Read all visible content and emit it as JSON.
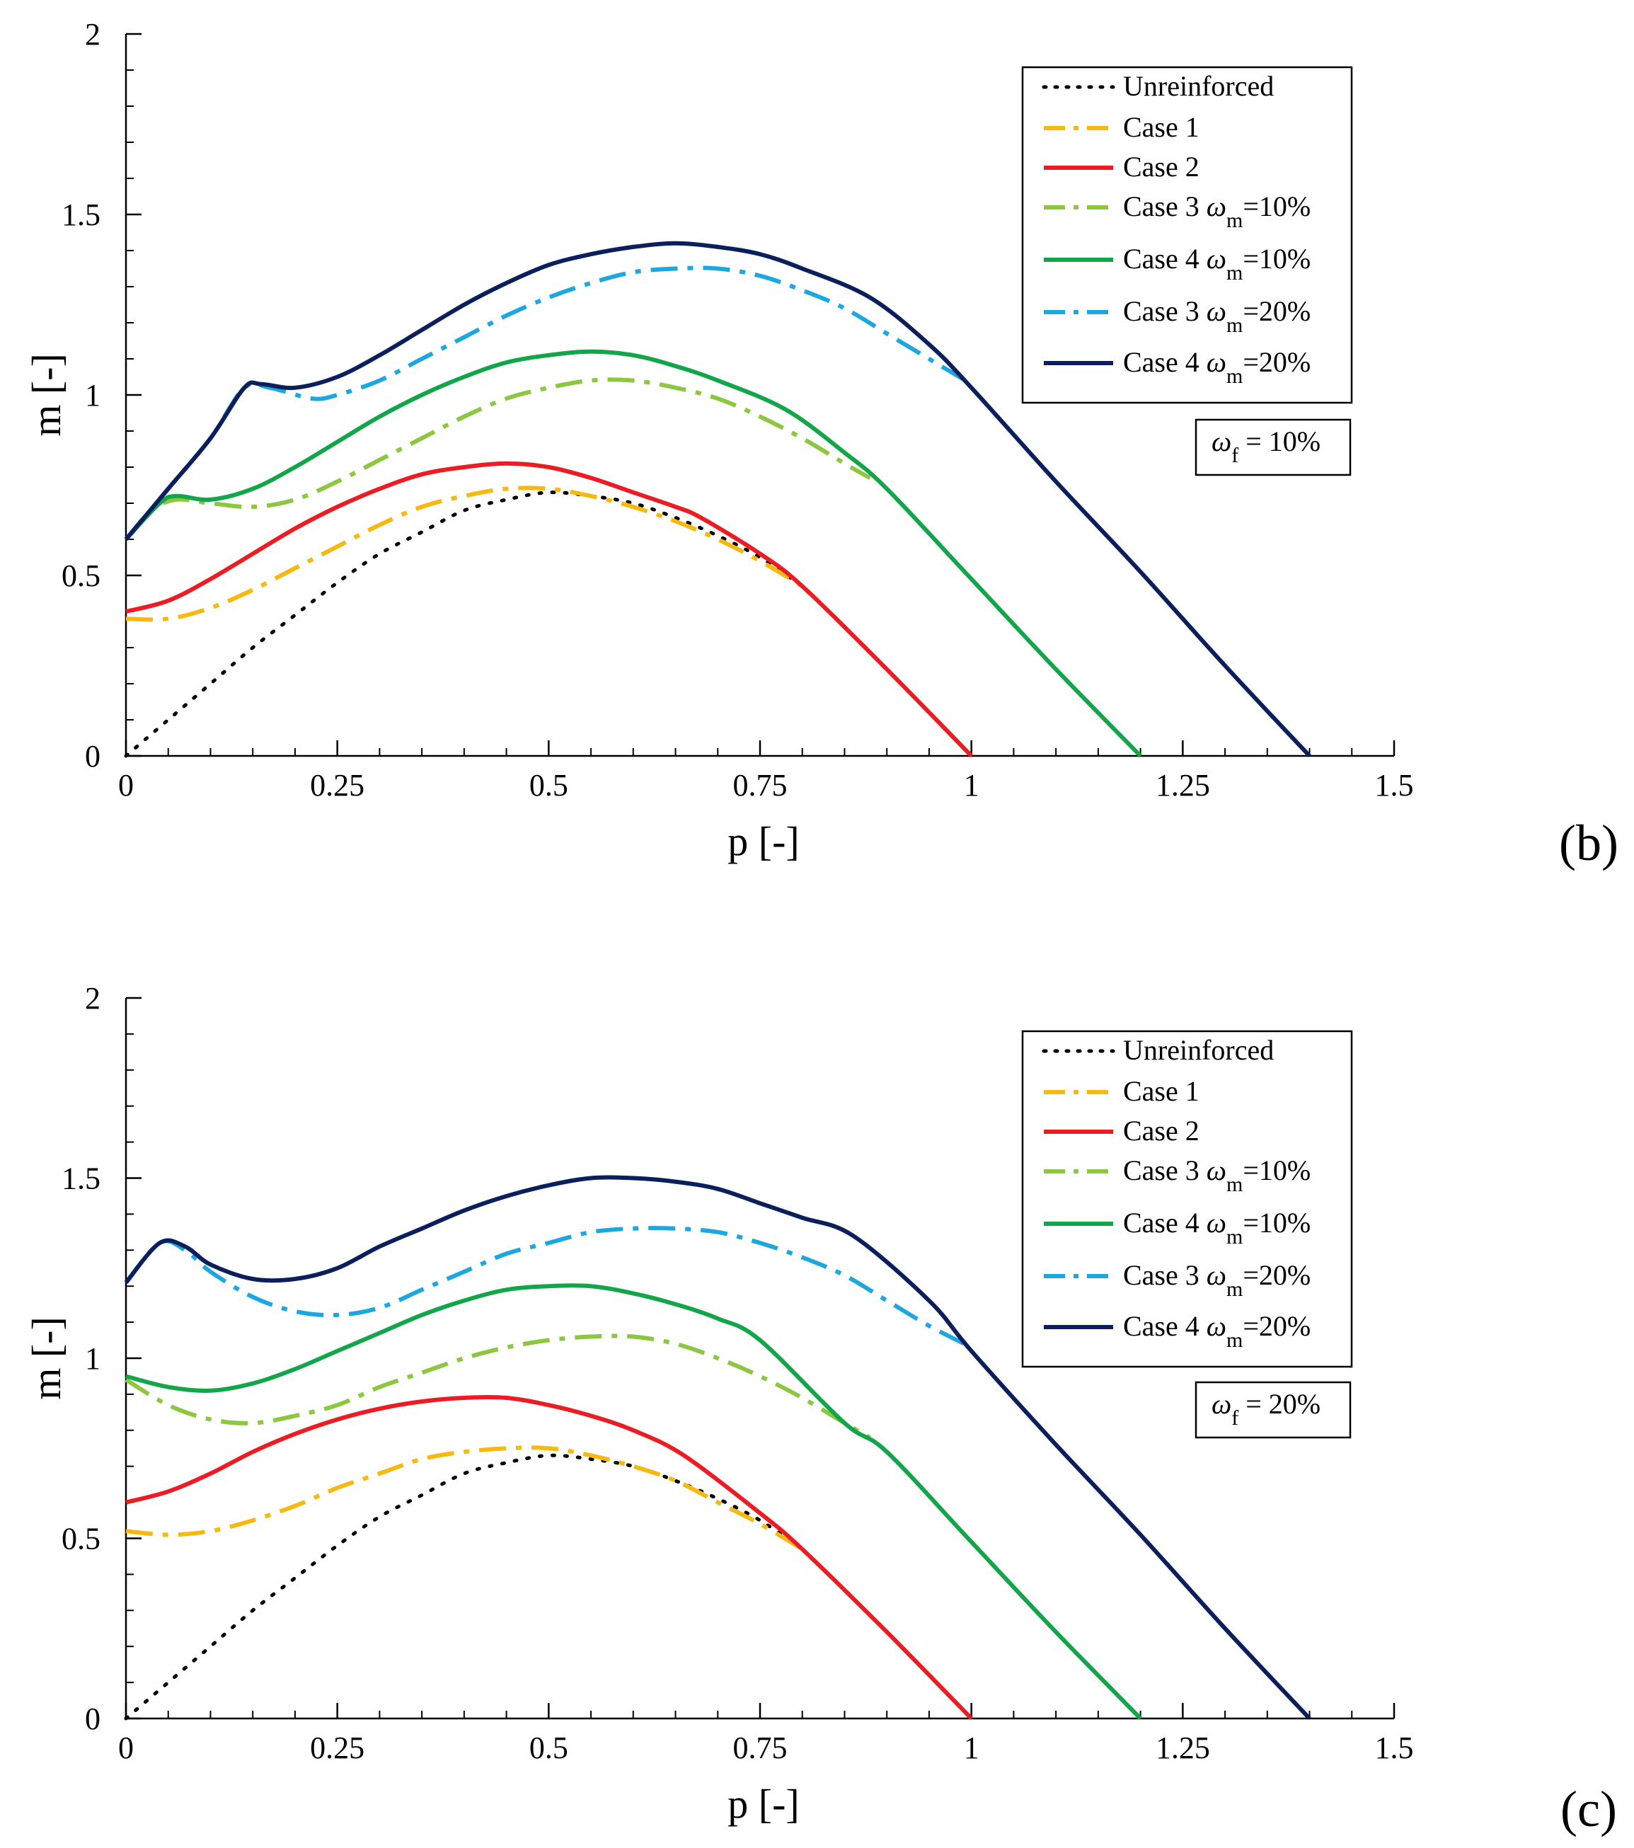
{
  "figure": {
    "legend_colors": {
      "Unreinforced": "#000000",
      "Case 1": "#f6b90f",
      "Case 2": "#ec1c24",
      "Case 3 wm=10%": "#8dc63f",
      "Case 4 wm=10%": "#13a54a",
      "Case 3 wm=20%": "#1ca7e1",
      "Case 4 wm=20%": "#0b1f5c"
    }
  },
  "chart_data": [
    {
      "type": "line",
      "panel_label": "(b)",
      "xlabel": "p [-]",
      "ylabel": "m [-]",
      "xlim": [
        0,
        1.5
      ],
      "ylim": [
        0,
        2
      ],
      "xticks": [
        "0",
        "0.25",
        "0.5",
        "0.75",
        "1",
        "1.25",
        "1.5"
      ],
      "yticks": [
        "0",
        "0.5",
        "1",
        "1.5",
        "2"
      ],
      "annotation": {
        "symbol": "ω",
        "sub": "f",
        "text": " = 10%"
      },
      "legend": [
        {
          "label": "Unreinforced",
          "omega": "",
          "value": ""
        },
        {
          "label": "Case 1",
          "omega": "",
          "value": ""
        },
        {
          "label": "Case 2",
          "omega": "",
          "value": ""
        },
        {
          "label": "Case 3 ",
          "omega": "ω",
          "sub": "m",
          "value": "=10%"
        },
        {
          "label": "Case 4 ",
          "omega": "ω",
          "sub": "m",
          "value": "=10%"
        },
        {
          "label": "Case 3 ",
          "omega": "ω",
          "sub": "m",
          "value": "=20%"
        },
        {
          "label": "Case 4 ",
          "omega": "ω",
          "sub": "m",
          "value": "=20%"
        }
      ],
      "series": [
        {
          "name": "Unreinforced",
          "color": "#000000",
          "dash": "dot",
          "x": [
            0.0,
            0.05,
            0.1,
            0.15,
            0.2,
            0.25,
            0.3,
            0.35,
            0.4,
            0.45,
            0.5,
            0.55,
            0.6,
            0.65,
            0.7,
            0.75,
            0.8
          ],
          "y": [
            0.0,
            0.1,
            0.2,
            0.3,
            0.39,
            0.48,
            0.56,
            0.62,
            0.68,
            0.71,
            0.73,
            0.72,
            0.7,
            0.66,
            0.61,
            0.55,
            0.47
          ]
        },
        {
          "name": "Case 1",
          "color": "#f6b90f",
          "dash": "dashdot",
          "x": [
            0.0,
            0.05,
            0.1,
            0.15,
            0.2,
            0.25,
            0.3,
            0.35,
            0.4,
            0.45,
            0.5,
            0.55,
            0.6,
            0.65,
            0.7,
            0.75,
            0.8
          ],
          "y": [
            0.38,
            0.38,
            0.41,
            0.46,
            0.52,
            0.58,
            0.64,
            0.69,
            0.72,
            0.74,
            0.74,
            0.72,
            0.69,
            0.65,
            0.6,
            0.54,
            0.47
          ]
        },
        {
          "name": "Case 2",
          "color": "#ec1c24",
          "dash": "solid",
          "x": [
            0.0,
            0.05,
            0.1,
            0.15,
            0.2,
            0.25,
            0.3,
            0.35,
            0.4,
            0.45,
            0.5,
            0.55,
            0.6,
            0.65,
            0.68,
            0.75,
            0.8,
            0.9,
            1.0
          ],
          "y": [
            0.4,
            0.43,
            0.49,
            0.56,
            0.63,
            0.69,
            0.74,
            0.78,
            0.8,
            0.81,
            0.8,
            0.77,
            0.73,
            0.69,
            0.66,
            0.56,
            0.47,
            0.24,
            0.0
          ]
        },
        {
          "name": "Case 3 wm=10%",
          "color": "#8dc63f",
          "dash": "dashdot",
          "x": [
            0.0,
            0.03,
            0.06,
            0.1,
            0.15,
            0.2,
            0.25,
            0.3,
            0.35,
            0.4,
            0.45,
            0.5,
            0.55,
            0.6,
            0.65,
            0.7,
            0.75,
            0.8,
            0.85,
            0.88
          ],
          "y": [
            0.6,
            0.68,
            0.71,
            0.7,
            0.69,
            0.71,
            0.76,
            0.82,
            0.88,
            0.94,
            0.99,
            1.02,
            1.04,
            1.04,
            1.02,
            0.99,
            0.94,
            0.88,
            0.81,
            0.77
          ]
        },
        {
          "name": "Case 4 wm=10%",
          "color": "#13a54a",
          "dash": "solid",
          "x": [
            0.0,
            0.04,
            0.06,
            0.1,
            0.15,
            0.2,
            0.25,
            0.3,
            0.35,
            0.4,
            0.45,
            0.5,
            0.55,
            0.6,
            0.65,
            0.7,
            0.78,
            0.85,
            0.9,
            1.0,
            1.1,
            1.2
          ],
          "y": [
            0.6,
            0.7,
            0.72,
            0.71,
            0.74,
            0.8,
            0.87,
            0.94,
            1.0,
            1.05,
            1.09,
            1.11,
            1.12,
            1.11,
            1.08,
            1.04,
            0.96,
            0.84,
            0.74,
            0.49,
            0.24,
            0.0
          ]
        },
        {
          "name": "Case 3 wm=20%",
          "color": "#1ca7e1",
          "dash": "dashdot",
          "x": [
            0.0,
            0.05,
            0.1,
            0.14,
            0.17,
            0.22,
            0.25,
            0.3,
            0.35,
            0.4,
            0.45,
            0.5,
            0.55,
            0.6,
            0.65,
            0.7,
            0.75,
            0.8,
            0.85,
            0.9,
            0.95,
            1.0
          ],
          "y": [
            0.6,
            0.74,
            0.88,
            1.02,
            1.02,
            0.99,
            1.0,
            1.04,
            1.1,
            1.16,
            1.22,
            1.27,
            1.31,
            1.34,
            1.35,
            1.35,
            1.33,
            1.29,
            1.24,
            1.17,
            1.1,
            1.03
          ]
        },
        {
          "name": "Case 4 wm=20%",
          "color": "#0b1f5c",
          "dash": "solid",
          "x": [
            0.0,
            0.05,
            0.1,
            0.14,
            0.16,
            0.2,
            0.25,
            0.3,
            0.35,
            0.4,
            0.45,
            0.5,
            0.55,
            0.6,
            0.65,
            0.7,
            0.75,
            0.8,
            0.88,
            0.95,
            1.0,
            1.1,
            1.2,
            1.3,
            1.4
          ],
          "y": [
            0.6,
            0.74,
            0.88,
            1.02,
            1.03,
            1.02,
            1.05,
            1.11,
            1.18,
            1.25,
            1.31,
            1.36,
            1.39,
            1.41,
            1.42,
            1.41,
            1.39,
            1.35,
            1.27,
            1.14,
            1.02,
            0.76,
            0.51,
            0.25,
            0.0
          ]
        }
      ]
    },
    {
      "type": "line",
      "panel_label": "(c)",
      "xlabel": "p [-]",
      "ylabel": "m [-]",
      "xlim": [
        0,
        1.5
      ],
      "ylim": [
        0,
        2
      ],
      "xticks": [
        "0",
        "0.25",
        "0.5",
        "0.75",
        "1",
        "1.25",
        "1.5"
      ],
      "yticks": [
        "0",
        "0.5",
        "1",
        "1.5",
        "2"
      ],
      "annotation": {
        "symbol": "ω",
        "sub": "f",
        "text": " = 20%"
      },
      "legend": [
        {
          "label": "Unreinforced",
          "omega": "",
          "value": ""
        },
        {
          "label": "Case 1",
          "omega": "",
          "value": ""
        },
        {
          "label": "Case 2",
          "omega": "",
          "value": ""
        },
        {
          "label": "Case 3 ",
          "omega": "ω",
          "sub": "m",
          "value": "=10%"
        },
        {
          "label": "Case 4 ",
          "omega": "ω",
          "sub": "m",
          "value": "=10%"
        },
        {
          "label": "Case 3 ",
          "omega": "ω",
          "sub": "m",
          "value": "=20%"
        },
        {
          "label": "Case 4 ",
          "omega": "ω",
          "sub": "m",
          "value": "=20%"
        }
      ],
      "series": [
        {
          "name": "Unreinforced",
          "color": "#000000",
          "dash": "dot",
          "x": [
            0.0,
            0.05,
            0.1,
            0.15,
            0.2,
            0.25,
            0.3,
            0.35,
            0.4,
            0.45,
            0.5,
            0.55,
            0.6,
            0.65,
            0.7,
            0.75,
            0.8
          ],
          "y": [
            0.0,
            0.1,
            0.2,
            0.3,
            0.39,
            0.48,
            0.56,
            0.62,
            0.68,
            0.71,
            0.73,
            0.72,
            0.7,
            0.66,
            0.61,
            0.55,
            0.47
          ]
        },
        {
          "name": "Case 1",
          "color": "#f6b90f",
          "dash": "dashdot",
          "x": [
            0.0,
            0.05,
            0.1,
            0.15,
            0.2,
            0.25,
            0.3,
            0.35,
            0.4,
            0.45,
            0.5,
            0.55,
            0.6,
            0.65,
            0.7,
            0.75,
            0.8
          ],
          "y": [
            0.52,
            0.51,
            0.52,
            0.55,
            0.59,
            0.64,
            0.68,
            0.72,
            0.74,
            0.75,
            0.75,
            0.73,
            0.7,
            0.66,
            0.6,
            0.54,
            0.47
          ]
        },
        {
          "name": "Case 2",
          "color": "#ec1c24",
          "dash": "solid",
          "x": [
            0.0,
            0.05,
            0.1,
            0.15,
            0.2,
            0.25,
            0.3,
            0.35,
            0.4,
            0.45,
            0.5,
            0.55,
            0.6,
            0.66,
            0.75,
            0.8,
            0.9,
            1.0
          ],
          "y": [
            0.6,
            0.63,
            0.68,
            0.74,
            0.79,
            0.83,
            0.86,
            0.88,
            0.89,
            0.89,
            0.87,
            0.84,
            0.8,
            0.73,
            0.57,
            0.47,
            0.24,
            0.0
          ]
        },
        {
          "name": "Case 3 wm=10%",
          "color": "#8dc63f",
          "dash": "dashdot",
          "x": [
            0.0,
            0.05,
            0.1,
            0.15,
            0.2,
            0.25,
            0.3,
            0.35,
            0.4,
            0.45,
            0.5,
            0.55,
            0.6,
            0.65,
            0.7,
            0.75,
            0.8,
            0.85,
            0.88
          ],
          "y": [
            0.94,
            0.87,
            0.83,
            0.82,
            0.84,
            0.87,
            0.92,
            0.96,
            1.0,
            1.03,
            1.05,
            1.06,
            1.06,
            1.04,
            1.0,
            0.95,
            0.89,
            0.82,
            0.78
          ]
        },
        {
          "name": "Case 4 wm=10%",
          "color": "#13a54a",
          "dash": "solid",
          "x": [
            0.0,
            0.05,
            0.1,
            0.15,
            0.2,
            0.25,
            0.3,
            0.35,
            0.4,
            0.45,
            0.5,
            0.55,
            0.6,
            0.65,
            0.7,
            0.75,
            0.85,
            0.9,
            1.0,
            1.1,
            1.2
          ],
          "y": [
            0.95,
            0.92,
            0.91,
            0.93,
            0.97,
            1.02,
            1.07,
            1.12,
            1.16,
            1.19,
            1.2,
            1.2,
            1.18,
            1.15,
            1.11,
            1.05,
            0.82,
            0.74,
            0.49,
            0.24,
            0.0
          ]
        },
        {
          "name": "Case 3 wm=20%",
          "color": "#1ca7e1",
          "dash": "dashdot",
          "x": [
            0.0,
            0.04,
            0.07,
            0.1,
            0.15,
            0.2,
            0.25,
            0.3,
            0.35,
            0.4,
            0.45,
            0.5,
            0.55,
            0.6,
            0.65,
            0.7,
            0.75,
            0.8,
            0.85,
            0.9,
            0.95,
            1.0
          ],
          "y": [
            1.21,
            1.32,
            1.3,
            1.24,
            1.17,
            1.13,
            1.12,
            1.14,
            1.19,
            1.24,
            1.29,
            1.32,
            1.35,
            1.36,
            1.36,
            1.35,
            1.32,
            1.28,
            1.23,
            1.16,
            1.09,
            1.03
          ]
        },
        {
          "name": "Case 4 wm=20%",
          "color": "#0b1f5c",
          "dash": "solid",
          "x": [
            0.0,
            0.04,
            0.07,
            0.1,
            0.15,
            0.2,
            0.25,
            0.3,
            0.35,
            0.4,
            0.45,
            0.5,
            0.55,
            0.6,
            0.65,
            0.7,
            0.75,
            0.8,
            0.86,
            0.95,
            1.0,
            1.1,
            1.2,
            1.3,
            1.4
          ],
          "y": [
            1.21,
            1.32,
            1.31,
            1.26,
            1.22,
            1.22,
            1.25,
            1.31,
            1.36,
            1.41,
            1.45,
            1.48,
            1.5,
            1.5,
            1.49,
            1.47,
            1.43,
            1.39,
            1.34,
            1.16,
            1.02,
            0.76,
            0.51,
            0.25,
            0.0
          ]
        }
      ]
    }
  ]
}
